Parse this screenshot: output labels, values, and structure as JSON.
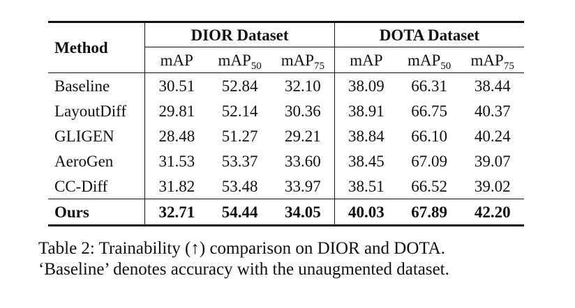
{
  "table": {
    "method_header": "Method",
    "groups": [
      "DIOR Dataset",
      "DOTA Dataset"
    ],
    "metrics": [
      {
        "base": "mAP",
        "sub": ""
      },
      {
        "base": "mAP",
        "sub": "50"
      },
      {
        "base": "mAP",
        "sub": "75"
      },
      {
        "base": "mAP",
        "sub": ""
      },
      {
        "base": "mAP",
        "sub": "50"
      },
      {
        "base": "mAP",
        "sub": "75"
      }
    ],
    "rows": [
      {
        "method": "Baseline",
        "values": [
          "30.51",
          "52.84",
          "32.10",
          "38.09",
          "66.31",
          "38.44"
        ]
      },
      {
        "method": "LayoutDiff",
        "values": [
          "29.81",
          "52.14",
          "30.36",
          "38.91",
          "66.75",
          "40.37"
        ]
      },
      {
        "method": "GLIGEN",
        "values": [
          "28.48",
          "51.27",
          "29.21",
          "38.84",
          "66.10",
          "40.24"
        ]
      },
      {
        "method": "AeroGen",
        "values": [
          "31.53",
          "53.37",
          "33.60",
          "38.45",
          "67.09",
          "39.07"
        ]
      },
      {
        "method": "CC-Diff",
        "values": [
          "31.82",
          "53.48",
          "33.97",
          "38.51",
          "66.52",
          "39.02"
        ]
      },
      {
        "method": "Ours",
        "values": [
          "32.71",
          "54.44",
          "34.05",
          "40.03",
          "67.89",
          "42.20"
        ]
      }
    ]
  },
  "caption": {
    "line1": "Table 2: Trainability (↑) comparison on DIOR and DOTA.",
    "line2": "‘Baseline’ denotes accuracy with the unaugmented dataset."
  }
}
